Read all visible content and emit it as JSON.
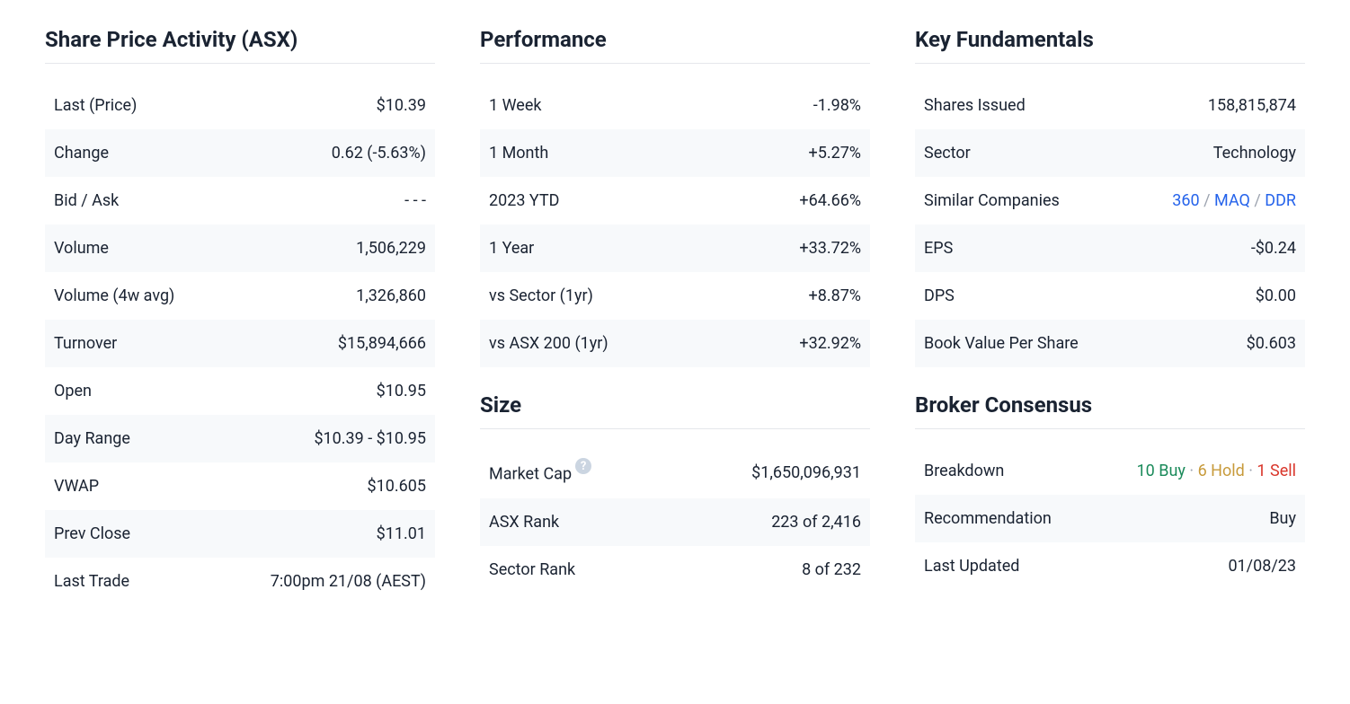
{
  "colors": {
    "text": "#1a2332",
    "border": "#e5e7eb",
    "alt_row_bg": "#f7f9fb",
    "negative": "#e2573b",
    "positive": "#1a8a5a",
    "link": "#2563eb",
    "gold": "#c79a3a",
    "red": "#d9362b",
    "help_bg": "#cbd5e1"
  },
  "share_price": {
    "title": "Share Price Activity (ASX)",
    "rows": {
      "last": {
        "label": "Last (Price)",
        "value": "$10.39"
      },
      "change": {
        "label": "Change",
        "value": "0.62 (-5.63%)",
        "negative": true
      },
      "bidask": {
        "label": "Bid / Ask",
        "value": "- - -"
      },
      "volume": {
        "label": "Volume",
        "value": "1,506,229"
      },
      "volume4w": {
        "label": "Volume (4w avg)",
        "value": "1,326,860"
      },
      "turnover": {
        "label": "Turnover",
        "value": "$15,894,666"
      },
      "open": {
        "label": "Open",
        "value": "$10.95"
      },
      "dayrange": {
        "label": "Day Range",
        "value": "$10.39 - $10.95"
      },
      "vwap": {
        "label": "VWAP",
        "value": "$10.605"
      },
      "prevclose": {
        "label": "Prev Close",
        "value": "$11.01"
      },
      "lasttrade": {
        "label": "Last Trade",
        "value": "7:00pm 21/08 (AEST)"
      }
    }
  },
  "performance": {
    "title": "Performance",
    "rows": {
      "w1": {
        "label": "1 Week",
        "value": "-1.98%",
        "positive": false
      },
      "m1": {
        "label": "1 Month",
        "value": "+5.27%",
        "positive": true
      },
      "ytd": {
        "label": "2023 YTD",
        "value": "+64.66%",
        "positive": true
      },
      "y1": {
        "label": "1 Year",
        "value": "+33.72%",
        "positive": true
      },
      "vsec": {
        "label": "vs Sector (1yr)",
        "value": "+8.87%",
        "positive": true
      },
      "vasx": {
        "label": "vs ASX 200 (1yr)",
        "value": "+32.92%",
        "positive": true
      }
    }
  },
  "size": {
    "title": "Size",
    "rows": {
      "mcap": {
        "label": "Market Cap",
        "value": "$1,650,096,931"
      },
      "arank": {
        "label": "ASX Rank",
        "value": "223 of 2,416"
      },
      "srank": {
        "label": "Sector Rank",
        "value": "8 of 232"
      }
    }
  },
  "fundamentals": {
    "title": "Key Fundamentals",
    "rows": {
      "shares": {
        "label": "Shares Issued",
        "value": "158,815,874"
      },
      "sector": {
        "label": "Sector",
        "value": "Technology"
      },
      "similar": {
        "label": "Similar Companies",
        "links": [
          "360",
          "MAQ",
          "DDR"
        ],
        "sep": " / "
      },
      "eps": {
        "label": "EPS",
        "value": "-$0.24"
      },
      "dps": {
        "label": "DPS",
        "value": "$0.00"
      },
      "bvps": {
        "label": "Book Value Per Share",
        "value": "$0.603"
      }
    }
  },
  "broker": {
    "title": "Broker Consensus",
    "rows": {
      "breakdown": {
        "label": "Breakdown",
        "buy": "10 Buy",
        "hold": "6 Hold",
        "sell": "1 Sell",
        "dot": " · "
      },
      "rec": {
        "label": "Recommendation",
        "value": "Buy"
      },
      "updated": {
        "label": "Last Updated",
        "value": "01/08/23"
      }
    }
  }
}
